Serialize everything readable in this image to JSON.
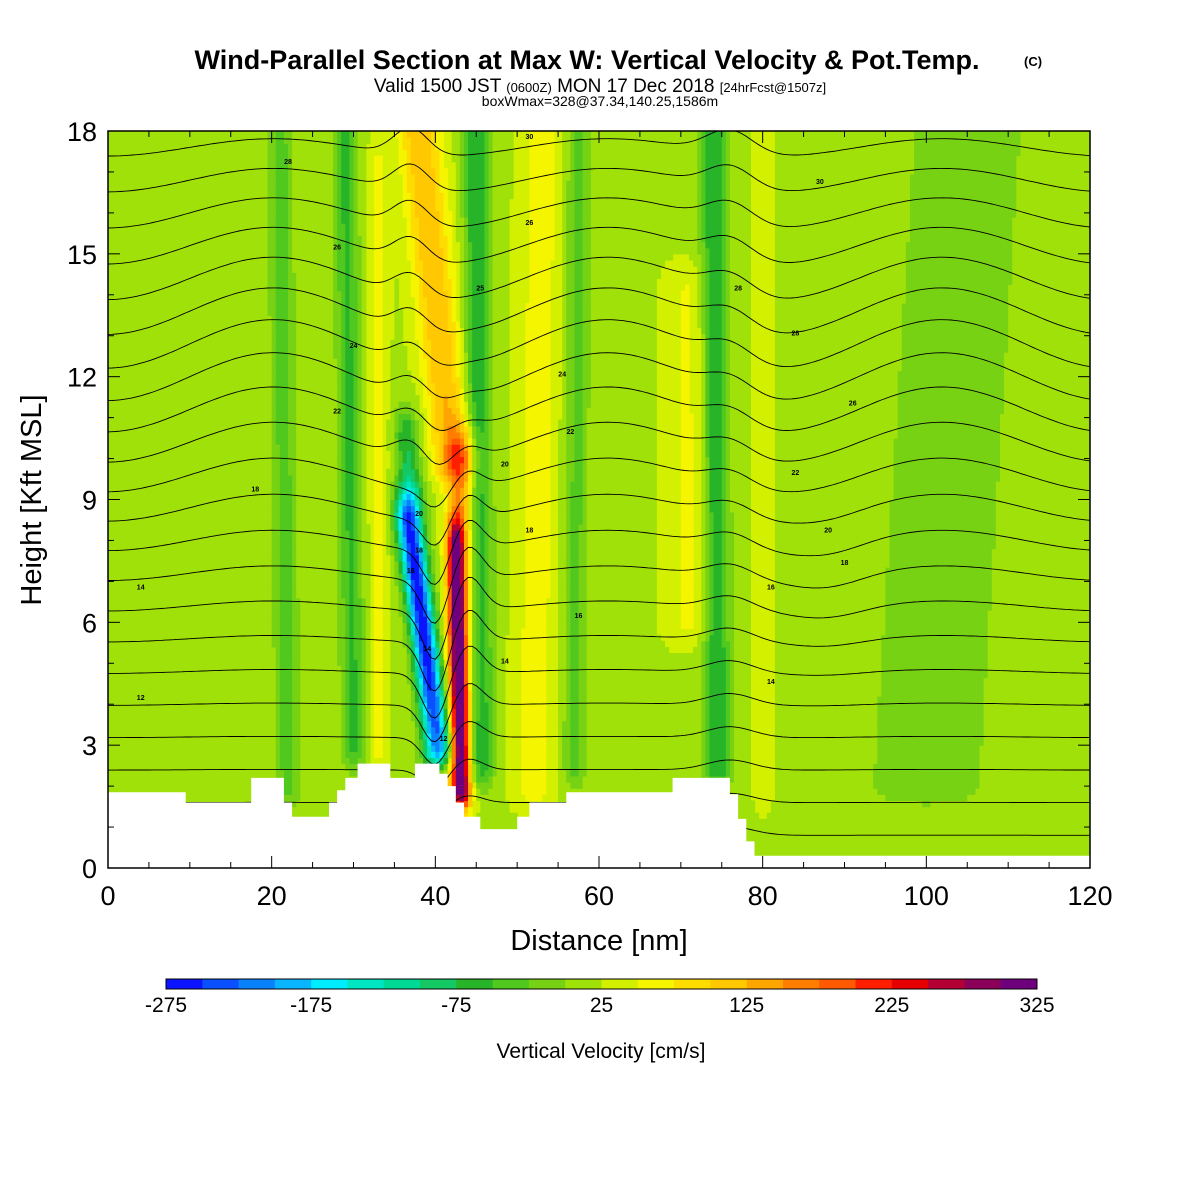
{
  "chart_data": {
    "type": "heatmap",
    "title": "Wind-Parallel Section at Max W: Vertical Velocity & Pot.Temp.",
    "title_mark": "(C)",
    "subtitle": {
      "valid_prefix": "Valid 1500 JST",
      "zulu": "(0600Z)",
      "date": "MON 17 Dec 2018",
      "forecast": "[24hrFcst@1507z]",
      "line2": "boxWmax=328@37.34,140.25,1586m"
    },
    "xlabel": "Distance [nm]",
    "ylabel": "Height [Kft MSL]",
    "xlim": [
      0,
      120
    ],
    "ylim": [
      0,
      18
    ],
    "x_ticks": [
      "0",
      "20",
      "40",
      "60",
      "80",
      "100",
      "120"
    ],
    "y_ticks": [
      "0",
      "3",
      "6",
      "9",
      "12",
      "15",
      "18"
    ],
    "colorbar": {
      "label": "Vertical Velocity [cm/s]",
      "tick_labels": [
        "-275",
        "-175",
        "-75",
        "25",
        "125",
        "225",
        "325"
      ],
      "levels": [
        -275,
        -250,
        -225,
        -200,
        -175,
        -150,
        -125,
        -100,
        -75,
        -50,
        -25,
        0,
        25,
        50,
        75,
        100,
        125,
        150,
        175,
        200,
        225,
        250,
        275,
        300,
        325
      ],
      "colors": [
        "#0a14ff",
        "#0a50ff",
        "#0a82ff",
        "#0ab4ff",
        "#00ecff",
        "#00e6c0",
        "#00d896",
        "#14c864",
        "#28b428",
        "#50c81e",
        "#78d214",
        "#a0e10a",
        "#d2f000",
        "#f5f500",
        "#ffdc00",
        "#ffc800",
        "#ffa500",
        "#ff7d00",
        "#ff5a00",
        "#ff1e00",
        "#e60000",
        "#b40032",
        "#8c005a",
        "#6e007d"
      ]
    },
    "fields": {
      "background_velocity": 20,
      "features": [
        {
          "x_bottom": 40.8,
          "y_bottom": 3.0,
          "x_top": 36.5,
          "y_top": 8.5,
          "width": 1.6,
          "velocity": -190
        },
        {
          "x_bottom": 39.5,
          "y_bottom": 3.0,
          "x_top": 36.5,
          "y_top": 10.5,
          "width": 1.5,
          "velocity": -80
        },
        {
          "x_bottom": 43.2,
          "y_bottom": 2.0,
          "x_top": 42.5,
          "y_top": 7.8,
          "width": 1.0,
          "velocity": 260
        },
        {
          "x_bottom": 42.8,
          "y_bottom": 2.0,
          "x_top": 43.2,
          "y_top": 10.0,
          "width": 1.8,
          "velocity": 150
        },
        {
          "x_bottom": 42.0,
          "y_bottom": 10.0,
          "x_top": 38.0,
          "y_top": 18.0,
          "width": 2.5,
          "velocity": 130
        },
        {
          "x_bottom": 45.5,
          "y_bottom": 2.5,
          "x_top": 45.0,
          "y_top": 18.0,
          "width": 1.6,
          "velocity": -80
        },
        {
          "x_bottom": 30.0,
          "y_bottom": 3.0,
          "x_top": 29.0,
          "y_top": 18.0,
          "width": 1.4,
          "velocity": -60
        },
        {
          "x_bottom": 33.0,
          "y_bottom": 3.0,
          "x_top": 33.0,
          "y_top": 17.0,
          "width": 1.2,
          "velocity": 60
        },
        {
          "x_bottom": 52.0,
          "y_bottom": 2.0,
          "x_top": 53.0,
          "y_top": 18.0,
          "width": 2.5,
          "velocity": 65
        },
        {
          "x_bottom": 74.5,
          "y_bottom": 2.5,
          "x_top": 74.0,
          "y_top": 18.0,
          "width": 1.6,
          "velocity": -80
        },
        {
          "x_bottom": 71.0,
          "y_bottom": 6.0,
          "x_top": 71.0,
          "y_top": 14.0,
          "width": 3.0,
          "velocity": 55
        },
        {
          "x_bottom": 80.0,
          "y_bottom": 2.0,
          "x_top": 80.0,
          "y_top": 18.0,
          "width": 1.2,
          "velocity": 45
        },
        {
          "x_bottom": 22.0,
          "y_bottom": 2.0,
          "x_top": 21.0,
          "y_top": 18.0,
          "width": 1.5,
          "velocity": -40
        },
        {
          "x_bottom": 57.0,
          "y_bottom": 2.5,
          "x_top": 57.5,
          "y_top": 18.0,
          "width": 1.5,
          "velocity": -35
        },
        {
          "x_bottom": 100.0,
          "y_bottom": 2.0,
          "x_top": 105.0,
          "y_top": 18.0,
          "width": 9.0,
          "velocity": -15
        }
      ]
    },
    "theta_contours": {
      "base_levels": [
        8,
        8.3,
        8.6,
        9.0,
        9.4,
        9.8,
        10.2,
        10.6,
        11.0,
        11.4,
        11.8,
        12.2,
        12.6,
        13.0,
        13.5,
        14.0,
        14.5,
        15.0,
        15.5,
        16.0,
        16.6,
        17.2
      ],
      "labels": [
        "12",
        "14",
        "16",
        "18",
        "20",
        "22",
        "24",
        "26",
        "28",
        "30"
      ]
    },
    "terrain": [
      {
        "x": 0,
        "y": 1.85
      },
      {
        "x": 9.5,
        "y": 1.85
      },
      {
        "x": 9.5,
        "y": 1.6
      },
      {
        "x": 17.5,
        "y": 1.6
      },
      {
        "x": 17.5,
        "y": 2.2
      },
      {
        "x": 21.5,
        "y": 2.2
      },
      {
        "x": 21.5,
        "y": 1.6
      },
      {
        "x": 22.5,
        "y": 1.6
      },
      {
        "x": 22.5,
        "y": 1.25
      },
      {
        "x": 27.0,
        "y": 1.25
      },
      {
        "x": 27.0,
        "y": 1.6
      },
      {
        "x": 28.0,
        "y": 1.6
      },
      {
        "x": 28.0,
        "y": 1.9
      },
      {
        "x": 29.0,
        "y": 1.9
      },
      {
        "x": 29.0,
        "y": 2.2
      },
      {
        "x": 30.5,
        "y": 2.2
      },
      {
        "x": 30.5,
        "y": 2.55
      },
      {
        "x": 34.5,
        "y": 2.55
      },
      {
        "x": 34.5,
        "y": 2.2
      },
      {
        "x": 37.5,
        "y": 2.2
      },
      {
        "x": 37.5,
        "y": 2.55
      },
      {
        "x": 40.5,
        "y": 2.55
      },
      {
        "x": 40.5,
        "y": 2.3
      },
      {
        "x": 41.5,
        "y": 2.3
      },
      {
        "x": 41.5,
        "y": 2.0
      },
      {
        "x": 42.5,
        "y": 2.0
      },
      {
        "x": 42.5,
        "y": 1.6
      },
      {
        "x": 43.5,
        "y": 1.6
      },
      {
        "x": 43.5,
        "y": 1.25
      },
      {
        "x": 45.5,
        "y": 1.25
      },
      {
        "x": 45.5,
        "y": 0.95
      },
      {
        "x": 50.0,
        "y": 0.95
      },
      {
        "x": 50.0,
        "y": 1.25
      },
      {
        "x": 51.5,
        "y": 1.25
      },
      {
        "x": 51.5,
        "y": 1.6
      },
      {
        "x": 56.0,
        "y": 1.6
      },
      {
        "x": 56.0,
        "y": 1.85
      },
      {
        "x": 69.0,
        "y": 1.85
      },
      {
        "x": 69.0,
        "y": 2.2
      },
      {
        "x": 76.0,
        "y": 2.2
      },
      {
        "x": 76.0,
        "y": 1.8
      },
      {
        "x": 77.0,
        "y": 1.8
      },
      {
        "x": 77.0,
        "y": 1.2
      },
      {
        "x": 78.0,
        "y": 1.2
      },
      {
        "x": 78.0,
        "y": 0.65
      },
      {
        "x": 79.0,
        "y": 0.65
      },
      {
        "x": 79.0,
        "y": 0.3
      },
      {
        "x": 120,
        "y": 0.3
      }
    ]
  }
}
